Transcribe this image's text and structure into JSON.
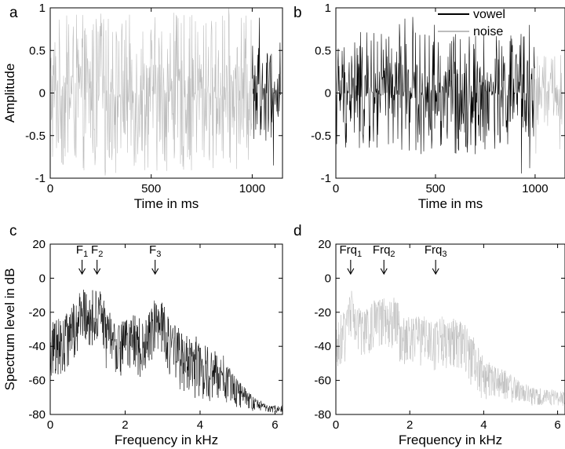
{
  "colors": {
    "vowel": "#000000",
    "noise": "#bdbdbd"
  },
  "legend": {
    "placement": "top-right of panel b",
    "entries": [
      "vowel",
      "noise"
    ]
  },
  "chart_data": [
    {
      "panel": "a",
      "type": "line",
      "xlabel": "Time in ms",
      "ylabel": "Amplitude",
      "xlim": [
        0,
        1150
      ],
      "ylim": [
        -1,
        1
      ],
      "xticks": [
        0,
        500,
        1000
      ],
      "yticks": [
        -1,
        -0.5,
        0,
        0.5,
        1
      ],
      "tick_labels_x": [
        "0",
        "500",
        "1000"
      ],
      "tick_labels_y": [
        "-1",
        "-0.5",
        "0",
        "0.5",
        "1"
      ],
      "series": [
        {
          "segment": "noise",
          "x_range": [
            0,
            1000
          ],
          "amplitude_envelope": 0.92,
          "peak": 1.0
        },
        {
          "segment": "vowel",
          "x_range": [
            1000,
            1140
          ],
          "amplitude_envelope": 0.6,
          "peak": 0.9
        }
      ]
    },
    {
      "panel": "b",
      "type": "line",
      "xlabel": "Time in ms",
      "ylabel": "",
      "xlim": [
        0,
        1150
      ],
      "ylim": [
        -1,
        1
      ],
      "xticks": [
        0,
        500,
        1000
      ],
      "yticks": [
        -1,
        -0.5,
        0,
        0.5,
        1
      ],
      "tick_labels_x": [
        "0",
        "500",
        "1000"
      ],
      "tick_labels_y": [
        "-1",
        "-0.5",
        "0",
        "0.5",
        "1"
      ],
      "series": [
        {
          "segment": "vowel",
          "x_range": [
            0,
            1000
          ],
          "amplitude_envelope": 0.72,
          "peak": 1.0
        },
        {
          "segment": "noise",
          "x_range": [
            1000,
            1140
          ],
          "amplitude_envelope": 0.45,
          "peak": 0.8
        }
      ]
    },
    {
      "panel": "c",
      "type": "line",
      "series_name": "vowel",
      "xlabel": "Frequency in kHz",
      "ylabel": "Spectrum level in dB",
      "xlim": [
        0,
        6.2
      ],
      "ylim": [
        -80,
        20
      ],
      "xticks": [
        0,
        2,
        4,
        6
      ],
      "yticks": [
        -80,
        -60,
        -40,
        -20,
        0,
        20
      ],
      "tick_labels_x": [
        "0",
        "2",
        "4",
        "6"
      ],
      "tick_labels_y": [
        "-80",
        "-60",
        "-40",
        "-20",
        "0",
        "20"
      ],
      "envelope": [
        [
          0,
          -30
        ],
        [
          0.4,
          -25
        ],
        [
          0.7,
          -15
        ],
        [
          0.85,
          -5
        ],
        [
          1.0,
          -15
        ],
        [
          1.15,
          -10
        ],
        [
          1.35,
          -8
        ],
        [
          1.5,
          -22
        ],
        [
          1.9,
          -27
        ],
        [
          2.3,
          -25
        ],
        [
          2.5,
          -28
        ],
        [
          2.6,
          -20
        ],
        [
          2.8,
          -15
        ],
        [
          3.0,
          -16
        ],
        [
          3.1,
          -24
        ],
        [
          3.5,
          -35
        ],
        [
          4.0,
          -40
        ],
        [
          4.6,
          -48
        ],
        [
          5.0,
          -60
        ],
        [
          5.4,
          -70
        ],
        [
          5.8,
          -75
        ],
        [
          6.2,
          -75
        ]
      ],
      "spread_db": 15,
      "annotations": [
        {
          "label": "F",
          "sub": "1",
          "x": 0.85
        },
        {
          "label": "F",
          "sub": "2",
          "x": 1.25
        },
        {
          "label": "F",
          "sub": "3",
          "x": 2.8
        }
      ]
    },
    {
      "panel": "d",
      "type": "line",
      "series_name": "noise",
      "xlabel": "Frequency in kHz",
      "ylabel": "",
      "xlim": [
        0,
        6.2
      ],
      "ylim": [
        -80,
        20
      ],
      "xticks": [
        0,
        2,
        4,
        6
      ],
      "yticks": [
        -80,
        -60,
        -40,
        -20,
        0,
        20
      ],
      "tick_labels_x": [
        "0",
        "2",
        "4",
        "6"
      ],
      "tick_labels_y": [
        "-80",
        "-60",
        "-40",
        "-20",
        "0",
        "20"
      ],
      "envelope": [
        [
          0,
          -30
        ],
        [
          0.25,
          -22
        ],
        [
          0.4,
          -10
        ],
        [
          0.55,
          -20
        ],
        [
          0.8,
          -20
        ],
        [
          1.0,
          -16
        ],
        [
          1.7,
          -15
        ],
        [
          1.75,
          -26
        ],
        [
          2.5,
          -26
        ],
        [
          3.4,
          -27
        ],
        [
          3.6,
          -33
        ],
        [
          4.0,
          -50
        ],
        [
          4.5,
          -55
        ],
        [
          5.0,
          -62
        ],
        [
          5.4,
          -66
        ],
        [
          6.2,
          -67
        ]
      ],
      "spread_db": 13,
      "annotations": [
        {
          "label": "Frq",
          "sub": "1",
          "x": 0.4
        },
        {
          "label": "Frq",
          "sub": "2",
          "x": 1.3
        },
        {
          "label": "Frq",
          "sub": "3",
          "x": 2.7
        }
      ]
    }
  ]
}
